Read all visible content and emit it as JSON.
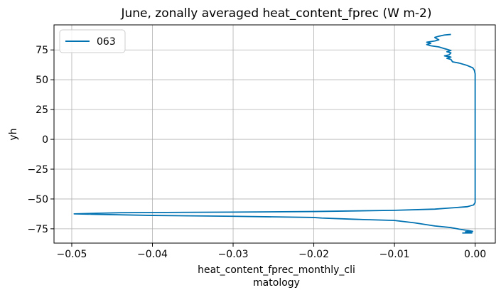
{
  "chart_data": {
    "type": "line",
    "title": "June, zonally averaged heat_content_fprec (W m-2)",
    "xlabel": [
      "heat_content_fprec_monthly_cli",
      "matology"
    ],
    "ylabel": "yh",
    "xlim": [
      -0.0522,
      0.0025
    ],
    "ylim": [
      -87,
      96
    ],
    "xticks": [
      -0.05,
      -0.04,
      -0.03,
      -0.02,
      -0.01,
      0.0
    ],
    "xtick_labels": [
      "−0.05",
      "−0.04",
      "−0.03",
      "−0.02",
      "−0.01",
      "0.00"
    ],
    "yticks": [
      -75,
      -50,
      -25,
      0,
      25,
      50,
      75
    ],
    "ytick_labels": [
      "−75",
      "−50",
      "−25",
      "0",
      "25",
      "50",
      "75"
    ],
    "grid": true,
    "legend_position": "top-left",
    "series": [
      {
        "name": "063",
        "color": "#0072b2",
        "points": [
          [
            -0.0016,
            -78.5
          ],
          [
            -0.0004,
            -78.5
          ],
          [
            -0.0012,
            -77.5
          ],
          [
            -0.0003,
            -77.2
          ],
          [
            -0.0008,
            -76.5
          ],
          [
            -0.0015,
            -75.8
          ],
          [
            -0.0022,
            -75.0
          ],
          [
            -0.003,
            -74.0
          ],
          [
            -0.004,
            -73.3
          ],
          [
            -0.005,
            -72.6
          ],
          [
            -0.0075,
            -70.0
          ],
          [
            -0.01,
            -68.0
          ],
          [
            -0.015,
            -67.0
          ],
          [
            -0.019,
            -66.0
          ],
          [
            -0.02,
            -65.5
          ],
          [
            -0.03,
            -64.5
          ],
          [
            -0.04,
            -63.8
          ],
          [
            -0.0497,
            -62.5
          ],
          [
            -0.044,
            -61.5
          ],
          [
            -0.03,
            -61.0
          ],
          [
            -0.02,
            -60.5
          ],
          [
            -0.01,
            -59.5
          ],
          [
            -0.005,
            -58.5
          ],
          [
            -0.003,
            -57.5
          ],
          [
            -0.001,
            -56.5
          ],
          [
            -0.0002,
            -55.0
          ],
          [
            0.0,
            -53.0
          ],
          [
            0.0,
            -30.0
          ],
          [
            0.0,
            0.0
          ],
          [
            0.0,
            30.0
          ],
          [
            0.0,
            55.0
          ],
          [
            -0.0001,
            58.0
          ],
          [
            -0.0003,
            60.0
          ],
          [
            -0.001,
            62.0
          ],
          [
            -0.002,
            64.0
          ],
          [
            -0.0028,
            65.0
          ],
          [
            -0.003,
            67.0
          ],
          [
            -0.0035,
            68.0
          ],
          [
            -0.003,
            69.0
          ],
          [
            -0.0038,
            70.0
          ],
          [
            -0.0032,
            71.0
          ],
          [
            -0.003,
            72.5
          ],
          [
            -0.0035,
            73.5
          ],
          [
            -0.003,
            74.5
          ],
          [
            -0.0035,
            75.5
          ],
          [
            -0.004,
            76.5
          ],
          [
            -0.0045,
            77.5
          ],
          [
            -0.0055,
            78.5
          ],
          [
            -0.006,
            79.5
          ],
          [
            -0.0055,
            80.5
          ],
          [
            -0.006,
            81.5
          ],
          [
            -0.005,
            82.5
          ],
          [
            -0.0045,
            83.5
          ],
          [
            -0.0048,
            84.5
          ],
          [
            -0.005,
            85.5
          ],
          [
            -0.0045,
            86.5
          ],
          [
            -0.0038,
            87.5
          ],
          [
            -0.003,
            88.0
          ]
        ]
      }
    ]
  }
}
